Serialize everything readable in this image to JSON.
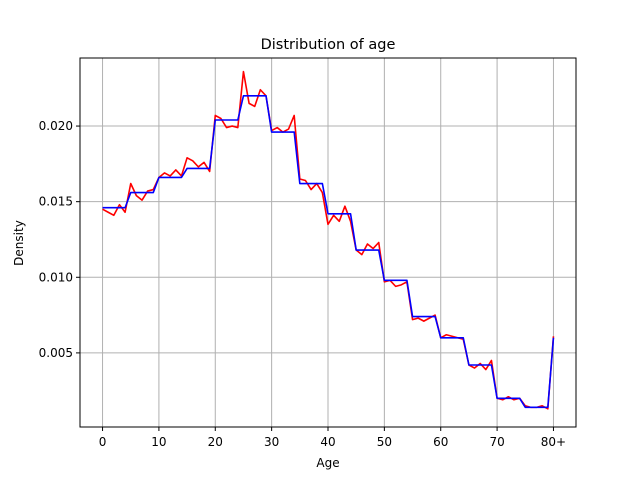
{
  "chart_data": {
    "type": "line",
    "title": "Distribution of age",
    "xlabel": "Age",
    "ylabel": "Density",
    "xlim": [
      -4,
      84
    ],
    "ylim": [
      0.0001,
      0.0245
    ],
    "grid": true,
    "x_ticks": [
      {
        "value": 0,
        "label": "0"
      },
      {
        "value": 10,
        "label": "10"
      },
      {
        "value": 20,
        "label": "20"
      },
      {
        "value": 30,
        "label": "30"
      },
      {
        "value": 40,
        "label": "40"
      },
      {
        "value": 50,
        "label": "50"
      },
      {
        "value": 60,
        "label": "60"
      },
      {
        "value": 70,
        "label": "70"
      },
      {
        "value": 80,
        "label": "80+"
      }
    ],
    "y_ticks": [
      {
        "value": 0.005,
        "label": "0.005"
      },
      {
        "value": 0.01,
        "label": "0.010"
      },
      {
        "value": 0.015,
        "label": "0.015"
      },
      {
        "value": 0.02,
        "label": "0.020"
      }
    ],
    "x": [
      0,
      1,
      2,
      3,
      4,
      5,
      6,
      7,
      8,
      9,
      10,
      11,
      12,
      13,
      14,
      15,
      16,
      17,
      18,
      19,
      20,
      21,
      22,
      23,
      24,
      25,
      26,
      27,
      28,
      29,
      30,
      31,
      32,
      33,
      34,
      35,
      36,
      37,
      38,
      39,
      40,
      41,
      42,
      43,
      44,
      45,
      46,
      47,
      48,
      49,
      50,
      51,
      52,
      53,
      54,
      55,
      56,
      57,
      58,
      59,
      60,
      61,
      62,
      63,
      64,
      65,
      66,
      67,
      68,
      69,
      70,
      71,
      72,
      73,
      74,
      75,
      76,
      77,
      78,
      79,
      80
    ],
    "series": [
      {
        "color": "#ff0000",
        "values": [
          0.0145,
          0.0143,
          0.0141,
          0.0148,
          0.0143,
          0.0162,
          0.0154,
          0.0151,
          0.0157,
          0.0158,
          0.0166,
          0.0169,
          0.0167,
          0.0171,
          0.0167,
          0.0179,
          0.0177,
          0.0173,
          0.0176,
          0.017,
          0.0207,
          0.0205,
          0.0199,
          0.02,
          0.0199,
          0.0236,
          0.0215,
          0.0213,
          0.0224,
          0.022,
          0.0197,
          0.0199,
          0.0196,
          0.0198,
          0.0207,
          0.0165,
          0.0164,
          0.0158,
          0.0162,
          0.0156,
          0.0135,
          0.0141,
          0.0137,
          0.0147,
          0.0137,
          0.0118,
          0.0115,
          0.0122,
          0.0119,
          0.0123,
          0.0097,
          0.0098,
          0.0094,
          0.0095,
          0.0097,
          0.0072,
          0.0073,
          0.0071,
          0.0073,
          0.0075,
          0.006,
          0.0062,
          0.0061,
          0.006,
          0.0059,
          0.0042,
          0.004,
          0.0043,
          0.0039,
          0.0045,
          0.002,
          0.0019,
          0.0021,
          0.0019,
          0.002,
          0.0015,
          0.0014,
          0.0014,
          0.0015,
          0.0013,
          0.0061
        ]
      },
      {
        "color": "#0000ff",
        "values": [
          0.0146,
          0.0146,
          0.0146,
          0.0146,
          0.0146,
          0.0156,
          0.0156,
          0.0156,
          0.0156,
          0.0156,
          0.0166,
          0.0166,
          0.0166,
          0.0166,
          0.0166,
          0.0172,
          0.0172,
          0.0172,
          0.0172,
          0.0172,
          0.0204,
          0.0204,
          0.0204,
          0.0204,
          0.0204,
          0.022,
          0.022,
          0.022,
          0.022,
          0.022,
          0.0196,
          0.0196,
          0.0196,
          0.0196,
          0.0196,
          0.0162,
          0.0162,
          0.0162,
          0.0162,
          0.0162,
          0.0142,
          0.0142,
          0.0142,
          0.0142,
          0.0142,
          0.0118,
          0.0118,
          0.0118,
          0.0118,
          0.0118,
          0.0098,
          0.0098,
          0.0098,
          0.0098,
          0.0098,
          0.0074,
          0.0074,
          0.0074,
          0.0074,
          0.0074,
          0.006,
          0.006,
          0.006,
          0.006,
          0.006,
          0.0042,
          0.0042,
          0.0042,
          0.0042,
          0.0042,
          0.002,
          0.002,
          0.002,
          0.002,
          0.002,
          0.0014,
          0.0014,
          0.0014,
          0.0014,
          0.0014,
          0.006
        ]
      }
    ]
  }
}
